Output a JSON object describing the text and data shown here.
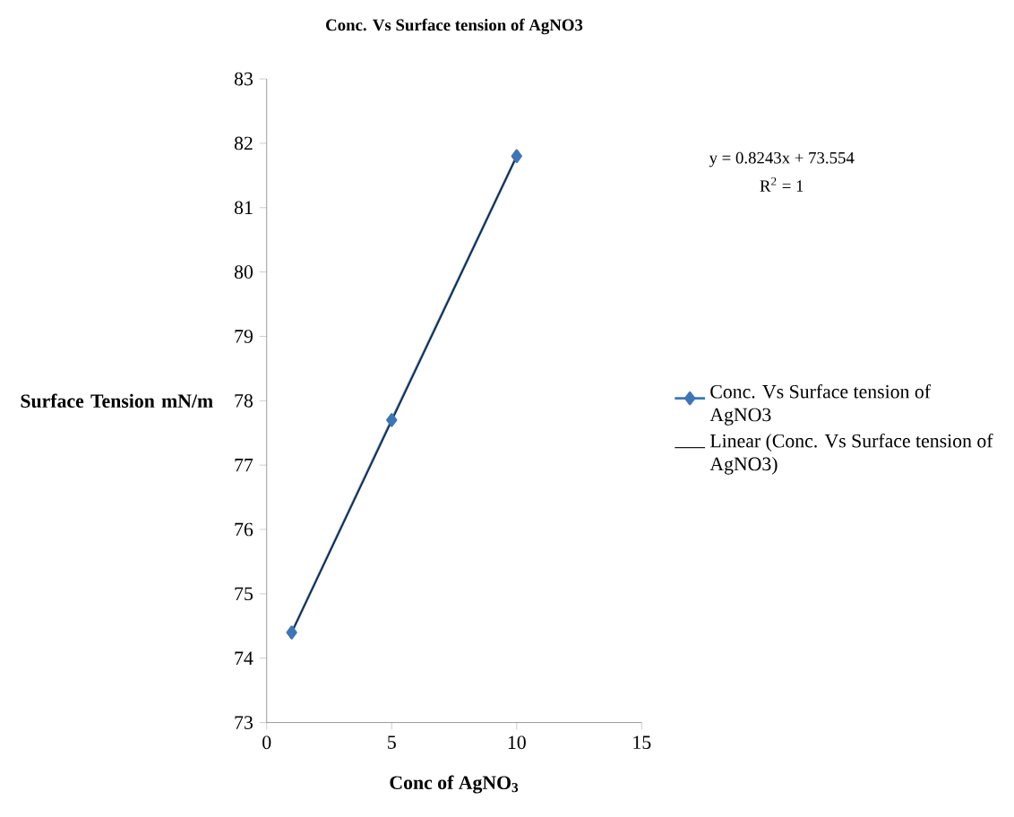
{
  "chart_data": {
    "type": "line",
    "title": "Conc. Vs Surface tension of AgNO3",
    "xlabel": "Conc of AgNO$_{3}$",
    "ylabel": "Surface Tension mN/m",
    "x": [
      1,
      5,
      10
    ],
    "xlim": [
      0,
      15
    ],
    "xticks": [
      0,
      5,
      10,
      15
    ],
    "ylim": [
      73,
      83
    ],
    "yticks": [
      73,
      74,
      75,
      76,
      77,
      78,
      79,
      80,
      81,
      82,
      83
    ],
    "series": [
      {
        "name": "Conc. Vs Surface tension of AgNO3",
        "color": "#3e75b6",
        "values": [
          74.4,
          77.7,
          81.8
        ],
        "marker": "diamond",
        "line_style": "solid"
      },
      {
        "name": "Linear (Conc. Vs Surface tension of AgNO3)",
        "type": "line",
        "color": "#1a1a1a",
        "x": [
          1,
          10
        ],
        "values": [
          74.4,
          81.8
        ],
        "marker": "none",
        "line_style": "solid"
      }
    ],
    "annotations": [
      "y = 0.8243x + 73.554",
      "R$^{2}$ = 1"
    ],
    "legend": "right",
    "grid": false
  }
}
